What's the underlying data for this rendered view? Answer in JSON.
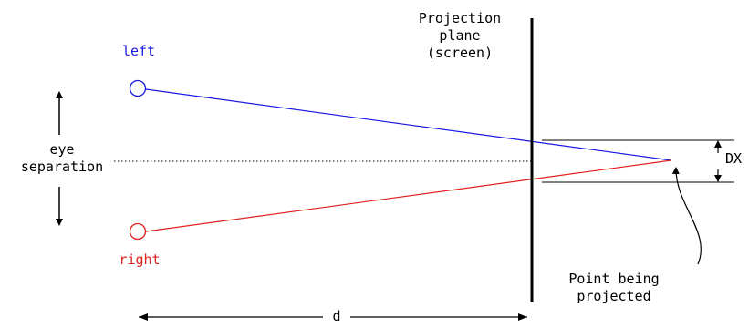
{
  "labels": {
    "left": "left",
    "right": "right",
    "projection_plane": [
      "Projection",
      "plane",
      "(screen)"
    ],
    "eye_separation": [
      "eye",
      "separation"
    ],
    "dx": "DX",
    "point": [
      "Point being",
      "projected"
    ],
    "d": "d"
  },
  "colors": {
    "left_eye": "#1a1ae0",
    "right_eye": "#e02020",
    "lines": "#000000",
    "background": "#ffffff"
  }
}
